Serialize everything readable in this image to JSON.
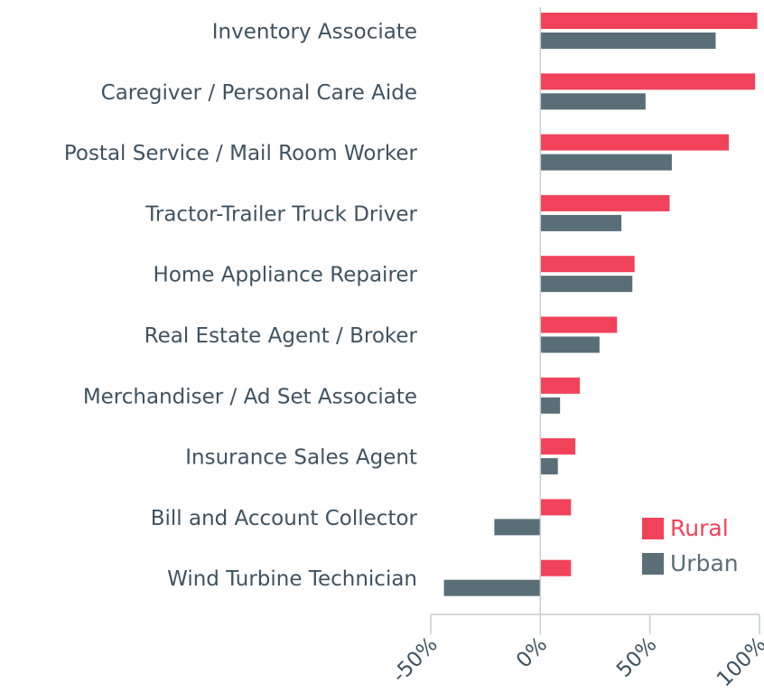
{
  "chart_data": {
    "type": "barh",
    "categories": [
      "Inventory Associate",
      "Caregiver / Personal Care Aide",
      "Postal Service / Mail Room Worker",
      "Tractor-Trailer Truck Driver",
      "Home Appliance Repairer",
      "Real Estate Agent / Broker",
      "Merchandiser / Ad Set Associate",
      "Insurance Sales Agent",
      "Bill and Account Collector",
      "Wind Turbine Technician"
    ],
    "series": [
      {
        "name": "Rural",
        "color": "#f0435a",
        "values": [
          99,
          98,
          86,
          59,
          43,
          35,
          18,
          16,
          14,
          14
        ]
      },
      {
        "name": "Urban",
        "color": "#5a6e78",
        "values": [
          80,
          48,
          60,
          37,
          42,
          27,
          9,
          8,
          -21,
          -44
        ]
      }
    ],
    "xlim": [
      -50,
      100
    ],
    "xticks": [
      {
        "value": -50,
        "label": "-50%"
      },
      {
        "value": 0,
        "label": "0%"
      },
      {
        "value": 50,
        "label": "50%"
      },
      {
        "value": 100,
        "label": "100%"
      }
    ],
    "legend": "lower right"
  }
}
